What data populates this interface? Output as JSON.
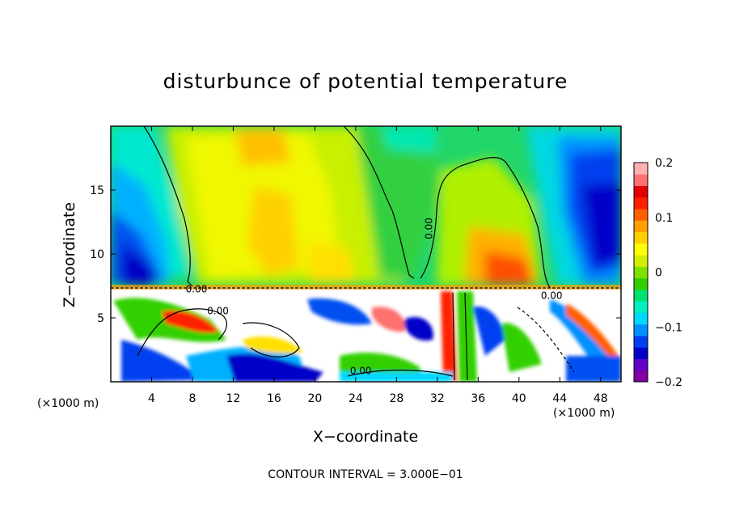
{
  "chart_data": {
    "type": "heatmap",
    "title": "disturbunce of potential temperature",
    "xlabel": "X−coordinate",
    "ylabel": "Z−coordinate",
    "x_unit_left": "(×1000 m)",
    "x_unit_right": "(×1000 m)",
    "xlim": [
      0,
      50
    ],
    "ylim": [
      0,
      20
    ],
    "x_ticks": [
      4,
      8,
      12,
      16,
      20,
      24,
      28,
      32,
      36,
      40,
      44,
      48
    ],
    "y_ticks": [
      5,
      10,
      15
    ],
    "colorbar": {
      "range": [
        -0.2,
        0.2
      ],
      "ticks": [
        {
          "value": 0.2,
          "label": "0.2"
        },
        {
          "value": 0.1,
          "label": "0.1"
        },
        {
          "value": 0,
          "label": "0"
        },
        {
          "value": -0.1,
          "label": "−0.1"
        },
        {
          "value": -0.2,
          "label": "−0.2"
        }
      ],
      "colors": [
        "#8000a0",
        "#6000c8",
        "#0000c8",
        "#0040f0",
        "#0090ff",
        "#00d8ff",
        "#00f0c0",
        "#00e070",
        "#30d000",
        "#80e000",
        "#d0f000",
        "#ffff00",
        "#ffd000",
        "#ffa000",
        "#ff6000",
        "#ff2000",
        "#e00000",
        "#ff7070",
        "#ffb0b0"
      ]
    },
    "contour_labels": [
      {
        "text": "0.00",
        "x": 31.5,
        "z": 12.0,
        "rotate": true
      },
      {
        "text": "0.00",
        "x": 8.4,
        "z": 7.0
      },
      {
        "text": "0.00",
        "x": 10.5,
        "z": 5.3
      },
      {
        "text": "0.00",
        "x": 24.5,
        "z": 0.6
      },
      {
        "text": "0.00",
        "x": 43.2,
        "z": 6.5
      }
    ],
    "contour_interval_text": "CONTOUR INTERVAL = 3.000E−01",
    "grid": false
  }
}
